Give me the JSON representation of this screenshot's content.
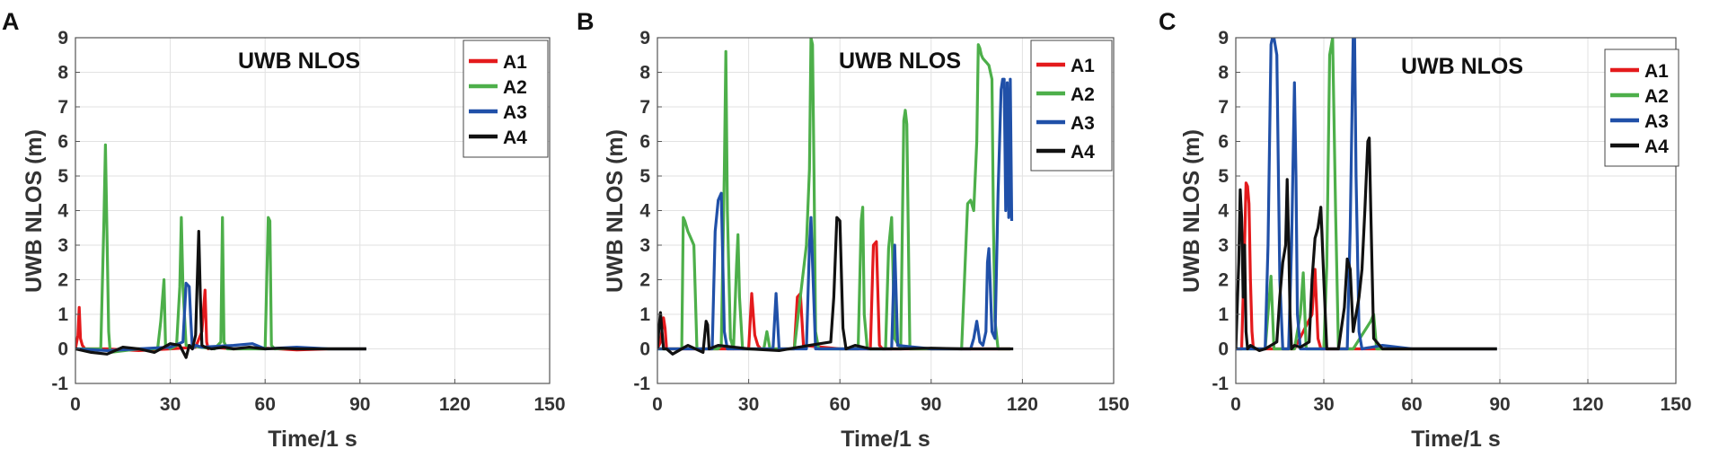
{
  "chart_data": [
    {
      "panel": "A",
      "type": "line",
      "title": "UWB NLOS",
      "xlabel": "Time/1 s",
      "ylabel": "UWB NLOS (m)",
      "xlim": [
        0,
        150
      ],
      "ylim": [
        -1,
        9
      ],
      "xticks": [
        0,
        30,
        60,
        90,
        120,
        150
      ],
      "yticks": [
        -1,
        0,
        1,
        2,
        3,
        4,
        5,
        6,
        7,
        8,
        9
      ],
      "grid": true,
      "legend_position": "top-right",
      "series": [
        {
          "name": "A1",
          "color": "#e41a1c",
          "x": [
            0,
            0.8,
            1.2,
            1.6,
            2.2,
            3,
            10,
            20,
            30,
            38,
            40,
            41,
            41.5,
            42,
            43,
            50,
            60,
            70,
            80,
            92
          ],
          "y": [
            0,
            0.4,
            1.2,
            0.3,
            0.1,
            0,
            0,
            -0.05,
            0,
            0.05,
            0.5,
            1.7,
            0.2,
            0,
            0.05,
            0,
            0.02,
            -0.03,
            0,
            0
          ]
        },
        {
          "name": "A2",
          "color": "#4daf4a",
          "x": [
            0,
            8,
            9,
            9.5,
            10,
            10.5,
            11,
            20,
            26,
            27,
            28,
            28.5,
            30,
            32,
            33,
            33.5,
            34,
            35,
            44,
            46,
            46.5,
            47,
            48,
            60,
            61,
            61.5,
            62,
            63,
            70,
            80,
            92
          ],
          "y": [
            0,
            0,
            3.7,
            5.9,
            3.2,
            0.5,
            -0.1,
            0,
            0,
            0.8,
            2.0,
            0.1,
            0,
            0.1,
            1.8,
            3.8,
            1.8,
            0.1,
            0,
            0.2,
            3.8,
            0.2,
            0,
            0,
            3.8,
            3.7,
            0.1,
            0,
            0.02,
            0,
            0
          ]
        },
        {
          "name": "A3",
          "color": "#2050a8",
          "x": [
            0,
            10,
            20,
            30,
            34,
            35,
            36,
            36.5,
            37,
            38,
            40,
            50,
            56,
            60,
            70,
            80,
            92
          ],
          "y": [
            0,
            -0.05,
            0,
            0.05,
            0.2,
            1.9,
            1.8,
            0.8,
            0,
            0.1,
            0.05,
            0.1,
            0.15,
            0,
            0.05,
            0,
            0
          ]
        },
        {
          "name": "A4",
          "color": "#111111",
          "x": [
            0,
            5,
            10,
            15,
            20,
            25,
            30,
            33,
            35,
            36,
            37,
            38,
            39,
            39.5,
            40,
            41,
            43,
            47,
            50,
            55,
            60,
            65,
            70,
            80,
            92
          ],
          "y": [
            0,
            -0.1,
            -0.15,
            0.05,
            0,
            -0.1,
            0.15,
            0.1,
            -0.25,
            0.1,
            0,
            0.4,
            3.4,
            1.6,
            0.1,
            0.05,
            0,
            0.05,
            0,
            0.05,
            0,
            0.02,
            0,
            0,
            0
          ]
        }
      ]
    },
    {
      "panel": "B",
      "type": "line",
      "title": "UWB NLOS",
      "xlabel": "Time/1 s",
      "ylabel": "UWB NLOS (m)",
      "xlim": [
        0,
        150
      ],
      "ylim": [
        -1,
        9
      ],
      "xticks": [
        0,
        30,
        60,
        90,
        120,
        150
      ],
      "yticks": [
        -1,
        0,
        1,
        2,
        3,
        4,
        5,
        6,
        7,
        8,
        9
      ],
      "grid": true,
      "legend_position": "top-right",
      "series": [
        {
          "name": "A1",
          "color": "#e41a1c",
          "x": [
            0,
            1,
            2,
            2.5,
            3,
            4,
            15,
            25,
            30,
            31,
            32,
            33,
            34,
            45,
            46,
            47,
            48,
            60,
            70,
            71,
            72,
            73,
            74,
            90,
            116
          ],
          "y": [
            0,
            0.2,
            0.9,
            0.6,
            0,
            0,
            0,
            0,
            0,
            1.6,
            0.4,
            0.1,
            0,
            0,
            1.5,
            1.6,
            0.1,
            0,
            0,
            3.0,
            3.1,
            0.1,
            0,
            0,
            0
          ]
        },
        {
          "name": "A2",
          "color": "#4daf4a",
          "x": [
            0,
            8,
            8.5,
            9,
            10,
            11,
            12,
            13,
            20,
            21,
            22,
            22.5,
            23,
            24,
            25,
            26,
            26.5,
            27,
            28,
            35,
            36,
            37,
            45,
            49,
            50,
            50.5,
            51,
            51.5,
            52,
            53,
            60,
            66,
            67,
            67.5,
            68,
            69,
            75,
            76,
            77,
            78,
            80,
            81,
            81.5,
            82,
            83,
            100,
            102,
            103,
            104,
            105,
            105.5,
            106,
            106.5,
            107,
            108,
            109,
            110,
            110.5,
            111,
            112,
            116
          ],
          "y": [
            0,
            0,
            3.8,
            3.7,
            3.4,
            3.2,
            3.0,
            0,
            0,
            0.1,
            5.1,
            8.6,
            4.0,
            0.3,
            0,
            2.4,
            3.3,
            1.5,
            0,
            0,
            0.5,
            0,
            0,
            3.0,
            5.2,
            9.0,
            8.8,
            5.0,
            0.5,
            0,
            0,
            0,
            3.7,
            4.1,
            1.0,
            0,
            0,
            2.9,
            3.8,
            0.3,
            0,
            6.6,
            6.9,
            6.5,
            0,
            0,
            4.2,
            4.3,
            4.0,
            6.0,
            8.8,
            8.7,
            8.5,
            8.4,
            8.3,
            8.2,
            7.8,
            3.5,
            0.8,
            0,
            0
          ]
        },
        {
          "name": "A3",
          "color": "#2050a8",
          "x": [
            0,
            10,
            18,
            19,
            20,
            21,
            22,
            23,
            30,
            38,
            39,
            40,
            49,
            50,
            50.5,
            51,
            52,
            60,
            70,
            77,
            78,
            79,
            90,
            103,
            104,
            105,
            106,
            107,
            108,
            108.5,
            109,
            110,
            111,
            112,
            113,
            113.5,
            114,
            114.5,
            115,
            115.5,
            116,
            116.5
          ],
          "y": [
            0,
            0,
            0,
            3.4,
            4.3,
            4.5,
            0.5,
            0,
            0,
            0,
            1.6,
            0,
            0,
            3.0,
            3.8,
            2.5,
            0,
            0,
            0,
            0,
            3.0,
            0.1,
            0,
            0,
            0.3,
            0.8,
            0.2,
            0.1,
            0.5,
            2.5,
            2.9,
            0.5,
            0.3,
            4.5,
            7.5,
            7.8,
            7.8,
            4.0,
            7.7,
            3.8,
            7.8,
            3.7
          ]
        },
        {
          "name": "A4",
          "color": "#111111",
          "x": [
            0,
            0.5,
            1,
            1.5,
            2,
            3,
            5,
            10,
            15,
            16,
            16.5,
            17,
            20,
            30,
            40,
            50,
            57,
            58,
            59,
            60,
            61,
            62,
            65,
            70,
            80,
            90,
            100,
            110,
            117
          ],
          "y": [
            0,
            0.6,
            1.05,
            0.5,
            0,
            0,
            -0.15,
            0.1,
            -0.1,
            0.8,
            0.7,
            0,
            0.1,
            0,
            -0.05,
            0.1,
            0.2,
            1.5,
            3.8,
            3.7,
            0.6,
            0,
            0.1,
            0,
            0,
            0.02,
            0,
            0,
            0
          ]
        }
      ]
    },
    {
      "panel": "C",
      "type": "line",
      "title": "UWB NLOS",
      "xlabel": "Time/1 s",
      "ylabel": "UWB NLOS (m)",
      "xlim": [
        0,
        150
      ],
      "ylim": [
        -1,
        9
      ],
      "xticks": [
        0,
        30,
        60,
        90,
        120,
        150
      ],
      "yticks": [
        -1,
        0,
        1,
        2,
        3,
        4,
        5,
        6,
        7,
        8,
        9
      ],
      "grid": true,
      "legend_position": "top-right",
      "series": [
        {
          "name": "A1",
          "color": "#e41a1c",
          "x": [
            0,
            2,
            3,
            3.5,
            4,
            4.5,
            5,
            5.5,
            6,
            10,
            20,
            26,
            27,
            28,
            29,
            40,
            60,
            89
          ],
          "y": [
            0,
            0,
            3.0,
            4.8,
            4.7,
            4.2,
            2.0,
            0.5,
            0,
            0,
            0,
            1.0,
            2.3,
            0.3,
            0,
            0,
            0,
            0
          ]
        },
        {
          "name": "A2",
          "color": "#4daf4a",
          "x": [
            0,
            10,
            12,
            13,
            20,
            22,
            23,
            24,
            30,
            31,
            32,
            33,
            34,
            35,
            40,
            46,
            47,
            48,
            55,
            60,
            89
          ],
          "y": [
            0,
            0,
            2.1,
            0,
            0,
            1.0,
            2.2,
            0,
            0,
            2.4,
            8.5,
            9.0,
            4.0,
            0,
            0,
            0.8,
            1.0,
            0,
            0,
            0,
            0
          ]
        },
        {
          "name": "A3",
          "color": "#2050a8",
          "x": [
            0,
            10,
            11,
            12,
            12.5,
            13,
            14,
            15,
            16,
            18,
            19,
            20,
            20.5,
            21,
            22,
            30,
            38,
            39,
            40,
            40.5,
            41,
            42,
            43,
            50,
            60,
            89
          ],
          "y": [
            0,
            0,
            3.0,
            8.8,
            9.0,
            9.0,
            8.5,
            2.0,
            0,
            0,
            3.0,
            7.7,
            5.0,
            1.0,
            0,
            0,
            0,
            3.5,
            9.0,
            9.0,
            5.0,
            0.5,
            0,
            0.1,
            0,
            0
          ]
        },
        {
          "name": "A4",
          "color": "#111111",
          "x": [
            0,
            1,
            1.5,
            2,
            2.5,
            3,
            3.5,
            4,
            5,
            8,
            10,
            14,
            15,
            16,
            17,
            17.5,
            18,
            18.5,
            19,
            20,
            22,
            25,
            26,
            27,
            28,
            29,
            30,
            31,
            35,
            37,
            38,
            39,
            40,
            42,
            43,
            44,
            45,
            45.5,
            46,
            47,
            50,
            60,
            70,
            89
          ],
          "y": [
            0,
            2.5,
            4.6,
            3.8,
            1.5,
            3.0,
            0.5,
            0,
            0.1,
            -0.05,
            0,
            0.2,
            1.5,
            2.5,
            3.0,
            4.9,
            3.2,
            1.0,
            0,
            0.1,
            0.05,
            0.2,
            2.0,
            3.2,
            3.5,
            4.1,
            2.0,
            0,
            0,
            1.2,
            2.6,
            2.3,
            0.5,
            1.5,
            2.3,
            4.0,
            6.0,
            6.1,
            4.0,
            0.3,
            0,
            0,
            0,
            0
          ]
        }
      ]
    }
  ]
}
